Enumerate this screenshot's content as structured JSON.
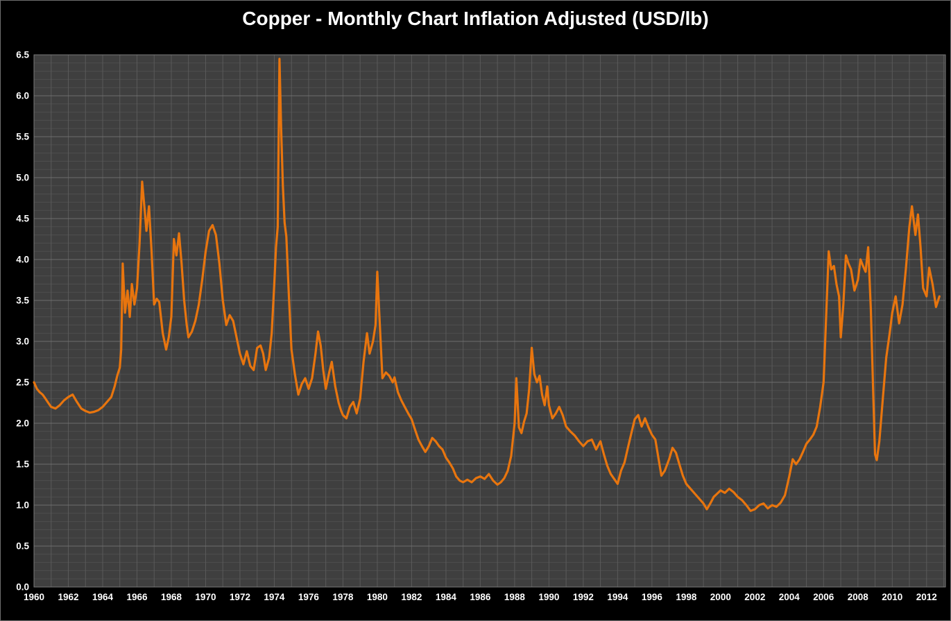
{
  "title": "Copper - Monthly Chart Inflation Adjusted (USD/lb)",
  "chart_data": {
    "type": "line",
    "title": "Copper - Monthly Chart Inflation Adjusted (USD/lb)",
    "xlabel": "",
    "ylabel": "",
    "legend": "none",
    "grid": "on",
    "xlim": [
      1960,
      2013.1
    ],
    "ylim": [
      0,
      6.5
    ],
    "y_major_step": 0.5,
    "y_minor_step": 0.1,
    "x_grid_step": 1,
    "x_tick_step": 2,
    "x_ticks": [
      1960,
      1962,
      1964,
      1966,
      1968,
      1970,
      1972,
      1974,
      1976,
      1978,
      1980,
      1982,
      1984,
      1986,
      1988,
      1990,
      1992,
      1994,
      1996,
      1998,
      2000,
      2002,
      2004,
      2006,
      2008,
      2010,
      2012
    ],
    "y_ticks": [
      "0.0",
      "0.5",
      "1.0",
      "1.5",
      "2.0",
      "2.5",
      "3.0",
      "3.5",
      "4.0",
      "4.5",
      "5.0",
      "5.5",
      "6.0",
      "6.5"
    ],
    "colors": {
      "page_bg": "#000000",
      "plot_bg": "#3f3f3f",
      "grid_major": "#6e6e6e",
      "grid_minor": "#4f4f4f",
      "grid_vertical": "#5a5a5a",
      "plot_border": "#7a7a7a",
      "line": "#e8750e",
      "text": "#ffffff"
    },
    "series_name": "Copper price, inflation adjusted (USD/lb)",
    "points": [
      [
        1960.0,
        2.5
      ],
      [
        1960.17,
        2.42
      ],
      [
        1960.33,
        2.38
      ],
      [
        1960.5,
        2.35
      ],
      [
        1960.67,
        2.3
      ],
      [
        1960.83,
        2.25
      ],
      [
        1961.0,
        2.2
      ],
      [
        1961.25,
        2.18
      ],
      [
        1961.5,
        2.22
      ],
      [
        1961.75,
        2.28
      ],
      [
        1962.0,
        2.32
      ],
      [
        1962.25,
        2.35
      ],
      [
        1962.5,
        2.26
      ],
      [
        1962.75,
        2.18
      ],
      [
        1963.0,
        2.15
      ],
      [
        1963.25,
        2.13
      ],
      [
        1963.5,
        2.14
      ],
      [
        1963.75,
        2.16
      ],
      [
        1964.0,
        2.2
      ],
      [
        1964.25,
        2.26
      ],
      [
        1964.5,
        2.32
      ],
      [
        1964.7,
        2.45
      ],
      [
        1964.85,
        2.58
      ],
      [
        1965.0,
        2.68
      ],
      [
        1965.08,
        2.9
      ],
      [
        1965.17,
        3.95
      ],
      [
        1965.3,
        3.35
      ],
      [
        1965.45,
        3.62
      ],
      [
        1965.58,
        3.3
      ],
      [
        1965.7,
        3.7
      ],
      [
        1965.85,
        3.45
      ],
      [
        1966.0,
        3.65
      ],
      [
        1966.15,
        4.2
      ],
      [
        1966.3,
        4.95
      ],
      [
        1966.45,
        4.6
      ],
      [
        1966.55,
        4.35
      ],
      [
        1966.7,
        4.65
      ],
      [
        1966.85,
        4.1
      ],
      [
        1967.0,
        3.45
      ],
      [
        1967.15,
        3.52
      ],
      [
        1967.3,
        3.48
      ],
      [
        1967.5,
        3.1
      ],
      [
        1967.7,
        2.9
      ],
      [
        1967.85,
        3.05
      ],
      [
        1968.0,
        3.3
      ],
      [
        1968.15,
        4.25
      ],
      [
        1968.3,
        4.05
      ],
      [
        1968.45,
        4.32
      ],
      [
        1968.6,
        3.95
      ],
      [
        1968.75,
        3.5
      ],
      [
        1968.9,
        3.2
      ],
      [
        1969.0,
        3.05
      ],
      [
        1969.2,
        3.12
      ],
      [
        1969.4,
        3.25
      ],
      [
        1969.6,
        3.45
      ],
      [
        1969.8,
        3.75
      ],
      [
        1970.0,
        4.1
      ],
      [
        1970.2,
        4.35
      ],
      [
        1970.4,
        4.42
      ],
      [
        1970.6,
        4.3
      ],
      [
        1970.8,
        3.95
      ],
      [
        1971.0,
        3.5
      ],
      [
        1971.2,
        3.2
      ],
      [
        1971.4,
        3.32
      ],
      [
        1971.6,
        3.25
      ],
      [
        1971.8,
        3.05
      ],
      [
        1972.0,
        2.85
      ],
      [
        1972.2,
        2.72
      ],
      [
        1972.4,
        2.88
      ],
      [
        1972.6,
        2.7
      ],
      [
        1972.8,
        2.65
      ],
      [
        1973.0,
        2.92
      ],
      [
        1973.2,
        2.95
      ],
      [
        1973.35,
        2.85
      ],
      [
        1973.5,
        2.65
      ],
      [
        1973.7,
        2.8
      ],
      [
        1973.85,
        3.1
      ],
      [
        1974.0,
        3.7
      ],
      [
        1974.1,
        4.15
      ],
      [
        1974.2,
        4.4
      ],
      [
        1974.3,
        6.45
      ],
      [
        1974.4,
        5.6
      ],
      [
        1974.5,
        4.9
      ],
      [
        1974.6,
        4.45
      ],
      [
        1974.7,
        4.28
      ],
      [
        1974.85,
        3.55
      ],
      [
        1975.0,
        2.9
      ],
      [
        1975.2,
        2.6
      ],
      [
        1975.4,
        2.35
      ],
      [
        1975.6,
        2.48
      ],
      [
        1975.8,
        2.55
      ],
      [
        1976.0,
        2.42
      ],
      [
        1976.2,
        2.55
      ],
      [
        1976.4,
        2.85
      ],
      [
        1976.55,
        3.12
      ],
      [
        1976.7,
        2.95
      ],
      [
        1976.85,
        2.65
      ],
      [
        1977.0,
        2.42
      ],
      [
        1977.2,
        2.62
      ],
      [
        1977.35,
        2.75
      ],
      [
        1977.55,
        2.45
      ],
      [
        1977.75,
        2.25
      ],
      [
        1977.9,
        2.15
      ],
      [
        1978.0,
        2.1
      ],
      [
        1978.2,
        2.06
      ],
      [
        1978.4,
        2.2
      ],
      [
        1978.6,
        2.26
      ],
      [
        1978.8,
        2.12
      ],
      [
        1979.0,
        2.3
      ],
      [
        1979.2,
        2.75
      ],
      [
        1979.4,
        3.1
      ],
      [
        1979.55,
        2.85
      ],
      [
        1979.75,
        3.0
      ],
      [
        1979.9,
        3.2
      ],
      [
        1980.0,
        3.85
      ],
      [
        1980.15,
        3.2
      ],
      [
        1980.3,
        2.55
      ],
      [
        1980.5,
        2.62
      ],
      [
        1980.7,
        2.58
      ],
      [
        1980.9,
        2.5
      ],
      [
        1981.0,
        2.56
      ],
      [
        1981.2,
        2.38
      ],
      [
        1981.4,
        2.28
      ],
      [
        1981.6,
        2.2
      ],
      [
        1981.8,
        2.12
      ],
      [
        1982.0,
        2.05
      ],
      [
        1982.2,
        1.92
      ],
      [
        1982.4,
        1.8
      ],
      [
        1982.6,
        1.72
      ],
      [
        1982.8,
        1.65
      ],
      [
        1983.0,
        1.72
      ],
      [
        1983.2,
        1.82
      ],
      [
        1983.4,
        1.78
      ],
      [
        1983.6,
        1.72
      ],
      [
        1983.8,
        1.68
      ],
      [
        1984.0,
        1.58
      ],
      [
        1984.2,
        1.52
      ],
      [
        1984.4,
        1.45
      ],
      [
        1984.6,
        1.35
      ],
      [
        1984.8,
        1.3
      ],
      [
        1985.0,
        1.28
      ],
      [
        1985.25,
        1.31
      ],
      [
        1985.5,
        1.28
      ],
      [
        1985.75,
        1.33
      ],
      [
        1986.0,
        1.35
      ],
      [
        1986.25,
        1.32
      ],
      [
        1986.5,
        1.38
      ],
      [
        1986.75,
        1.3
      ],
      [
        1987.0,
        1.25
      ],
      [
        1987.2,
        1.28
      ],
      [
        1987.4,
        1.33
      ],
      [
        1987.6,
        1.42
      ],
      [
        1987.8,
        1.6
      ],
      [
        1988.0,
        2.0
      ],
      [
        1988.1,
        2.55
      ],
      [
        1988.25,
        1.95
      ],
      [
        1988.4,
        1.88
      ],
      [
        1988.55,
        2.02
      ],
      [
        1988.7,
        2.12
      ],
      [
        1988.85,
        2.42
      ],
      [
        1989.0,
        2.92
      ],
      [
        1989.15,
        2.6
      ],
      [
        1989.3,
        2.5
      ],
      [
        1989.45,
        2.58
      ],
      [
        1989.6,
        2.35
      ],
      [
        1989.75,
        2.22
      ],
      [
        1989.9,
        2.45
      ],
      [
        1990.0,
        2.22
      ],
      [
        1990.2,
        2.06
      ],
      [
        1990.4,
        2.12
      ],
      [
        1990.6,
        2.2
      ],
      [
        1990.8,
        2.1
      ],
      [
        1991.0,
        1.96
      ],
      [
        1991.25,
        1.9
      ],
      [
        1991.5,
        1.85
      ],
      [
        1991.75,
        1.78
      ],
      [
        1992.0,
        1.72
      ],
      [
        1992.25,
        1.78
      ],
      [
        1992.5,
        1.8
      ],
      [
        1992.75,
        1.68
      ],
      [
        1993.0,
        1.78
      ],
      [
        1993.2,
        1.62
      ],
      [
        1993.4,
        1.48
      ],
      [
        1993.6,
        1.38
      ],
      [
        1993.8,
        1.32
      ],
      [
        1994.0,
        1.26
      ],
      [
        1994.2,
        1.42
      ],
      [
        1994.4,
        1.52
      ],
      [
        1994.6,
        1.7
      ],
      [
        1994.8,
        1.88
      ],
      [
        1995.0,
        2.05
      ],
      [
        1995.2,
        2.1
      ],
      [
        1995.4,
        1.96
      ],
      [
        1995.6,
        2.06
      ],
      [
        1995.8,
        1.95
      ],
      [
        1996.0,
        1.86
      ],
      [
        1996.2,
        1.8
      ],
      [
        1996.4,
        1.55
      ],
      [
        1996.55,
        1.36
      ],
      [
        1996.75,
        1.42
      ],
      [
        1997.0,
        1.56
      ],
      [
        1997.2,
        1.7
      ],
      [
        1997.4,
        1.64
      ],
      [
        1997.6,
        1.5
      ],
      [
        1997.8,
        1.36
      ],
      [
        1998.0,
        1.26
      ],
      [
        1998.25,
        1.2
      ],
      [
        1998.5,
        1.14
      ],
      [
        1998.75,
        1.08
      ],
      [
        1999.0,
        1.02
      ],
      [
        1999.2,
        0.95
      ],
      [
        1999.4,
        1.02
      ],
      [
        1999.6,
        1.1
      ],
      [
        1999.8,
        1.14
      ],
      [
        2000.0,
        1.18
      ],
      [
        2000.25,
        1.15
      ],
      [
        2000.5,
        1.2
      ],
      [
        2000.75,
        1.16
      ],
      [
        2001.0,
        1.1
      ],
      [
        2001.25,
        1.06
      ],
      [
        2001.5,
        1.0
      ],
      [
        2001.75,
        0.93
      ],
      [
        2002.0,
        0.95
      ],
      [
        2002.25,
        1.0
      ],
      [
        2002.5,
        1.02
      ],
      [
        2002.75,
        0.96
      ],
      [
        2003.0,
        1.0
      ],
      [
        2003.25,
        0.98
      ],
      [
        2003.5,
        1.03
      ],
      [
        2003.75,
        1.12
      ],
      [
        2004.0,
        1.35
      ],
      [
        2004.2,
        1.56
      ],
      [
        2004.4,
        1.5
      ],
      [
        2004.6,
        1.56
      ],
      [
        2004.8,
        1.65
      ],
      [
        2005.0,
        1.75
      ],
      [
        2005.2,
        1.8
      ],
      [
        2005.4,
        1.86
      ],
      [
        2005.6,
        1.96
      ],
      [
        2005.8,
        2.2
      ],
      [
        2006.0,
        2.5
      ],
      [
        2006.15,
        3.3
      ],
      [
        2006.3,
        4.1
      ],
      [
        2006.45,
        3.88
      ],
      [
        2006.6,
        3.92
      ],
      [
        2006.75,
        3.7
      ],
      [
        2006.9,
        3.55
      ],
      [
        2007.0,
        3.05
      ],
      [
        2007.15,
        3.45
      ],
      [
        2007.3,
        4.05
      ],
      [
        2007.45,
        3.95
      ],
      [
        2007.6,
        3.88
      ],
      [
        2007.8,
        3.62
      ],
      [
        2008.0,
        3.75
      ],
      [
        2008.15,
        4.0
      ],
      [
        2008.3,
        3.92
      ],
      [
        2008.45,
        3.85
      ],
      [
        2008.6,
        4.15
      ],
      [
        2008.75,
        3.4
      ],
      [
        2008.9,
        2.3
      ],
      [
        2009.0,
        1.62
      ],
      [
        2009.1,
        1.55
      ],
      [
        2009.25,
        1.78
      ],
      [
        2009.45,
        2.3
      ],
      [
        2009.65,
        2.8
      ],
      [
        2009.85,
        3.1
      ],
      [
        2010.0,
        3.35
      ],
      [
        2010.2,
        3.55
      ],
      [
        2010.4,
        3.22
      ],
      [
        2010.6,
        3.45
      ],
      [
        2010.8,
        3.9
      ],
      [
        2011.0,
        4.4
      ],
      [
        2011.15,
        4.65
      ],
      [
        2011.35,
        4.3
      ],
      [
        2011.5,
        4.55
      ],
      [
        2011.65,
        4.15
      ],
      [
        2011.8,
        3.65
      ],
      [
        2012.0,
        3.55
      ],
      [
        2012.15,
        3.9
      ],
      [
        2012.35,
        3.7
      ],
      [
        2012.55,
        3.42
      ],
      [
        2012.75,
        3.55
      ]
    ]
  }
}
